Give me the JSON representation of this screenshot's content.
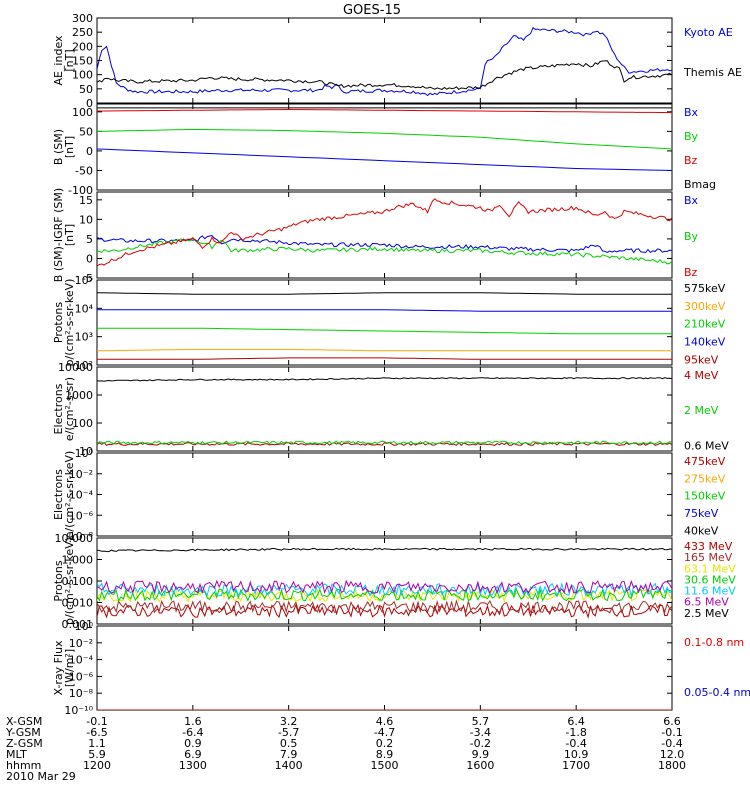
{
  "title": "GOES-15",
  "colors": {
    "black": "#000000",
    "blue": "#0000e0",
    "red": "#e00000",
    "green": "#00d000",
    "orange": "#ffa500",
    "yellow": "#e6e600",
    "cyan": "#00c8ff",
    "purple": "#b000b0",
    "brown": "#a52a2a",
    "darkred": "#b00000"
  },
  "chart_data": [
    {
      "type": "line",
      "id": "ae",
      "ylabel": [
        "AE_index",
        "[nT]"
      ],
      "ylim": [
        0,
        300
      ],
      "log": false,
      "yticks": [
        "0",
        "50",
        "100",
        "150",
        "200",
        "250",
        "300"
      ],
      "series": [
        {
          "name": "Kyoto AE",
          "color": "blue",
          "x": [
            1200,
            1205,
            1210,
            1220,
            1230,
            1240,
            1300,
            1330,
            1400,
            1430,
            1440,
            1445,
            1450,
            1455,
            1500,
            1530,
            1550,
            1600,
            1605,
            1615,
            1625,
            1635,
            1645,
            1655,
            1700,
            1710,
            1720,
            1730,
            1740,
            1750,
            1755,
            1800
          ],
          "y": [
            120,
            190,
            200,
            70,
            50,
            40,
            40,
            45,
            45,
            45,
            60,
            50,
            70,
            40,
            45,
            40,
            30,
            50,
            140,
            160,
            200,
            235,
            220,
            260,
            250,
            240,
            255,
            240,
            170,
            125,
            110,
            120
          ]
        },
        {
          "name": "Themis AE",
          "color": "black",
          "x": [
            1200,
            1210,
            1220,
            1240,
            1300,
            1320,
            1340,
            1400,
            1430,
            1440,
            1450,
            1500,
            1530,
            1550,
            1600,
            1615,
            1630,
            1645,
            1700,
            1715,
            1730,
            1745,
            1750,
            1755,
            1800
          ],
          "y": [
            70,
            90,
            80,
            75,
            80,
            90,
            85,
            80,
            75,
            70,
            60,
            65,
            60,
            50,
            55,
            85,
            105,
            120,
            140,
            130,
            150,
            120,
            80,
            90,
            100
          ]
        }
      ]
    },
    {
      "type": "line",
      "id": "bsm",
      "ylabel": [
        "B (SM)",
        "[nT]"
      ],
      "ylim": [
        -100,
        120
      ],
      "log": false,
      "yticks": [
        "-100",
        "-50",
        "0",
        "50",
        "100"
      ],
      "series": [
        {
          "name": "Bx",
          "color": "blue",
          "x": [
            1200,
            1300,
            1400,
            1500,
            1600,
            1700,
            1800
          ],
          "y": [
            5,
            -5,
            -15,
            -25,
            -35,
            -45,
            -50
          ]
        },
        {
          "name": "By",
          "color": "green",
          "x": [
            1200,
            1300,
            1400,
            1500,
            1600,
            1700,
            1800
          ],
          "y": [
            50,
            55,
            52,
            45,
            35,
            18,
            5
          ]
        },
        {
          "name": "Bz",
          "color": "red",
          "x": [
            1200,
            1300,
            1400,
            1500,
            1600,
            1700,
            1800
          ],
          "y": [
            102,
            104,
            106,
            104,
            102,
            100,
            98
          ]
        },
        {
          "name": "Bmag",
          "color": "black",
          "x": [
            1200,
            1300,
            1400,
            1500,
            1600,
            1700,
            1800
          ],
          "y": [
            110,
            110,
            110,
            110,
            110,
            110,
            110
          ]
        }
      ]
    },
    {
      "type": "line",
      "id": "bigrf",
      "ylabel": [
        "B (SM)-IGRF (SM)",
        "[nT]"
      ],
      "ylim": [
        -5,
        17
      ],
      "log": false,
      "yticks": [
        "-5",
        "0",
        "5",
        "10",
        "15"
      ],
      "series": [
        {
          "name": "Bx",
          "color": "blue",
          "x": [
            1200,
            1230,
            1300,
            1320,
            1330,
            1340,
            1400,
            1430,
            1500,
            1530,
            1600,
            1630,
            1700,
            1720,
            1730,
            1740,
            1800
          ],
          "y": [
            5,
            4.5,
            4.5,
            6,
            4,
            5,
            4,
            3.5,
            3.5,
            3,
            3,
            2.5,
            2,
            3.5,
            1.5,
            2,
            2
          ]
        },
        {
          "name": "By",
          "color": "green",
          "x": [
            1200,
            1220,
            1240,
            1300,
            1310,
            1320,
            1330,
            1340,
            1400,
            1430,
            1500,
            1530,
            1600,
            1630,
            1700,
            1730,
            1800
          ],
          "y": [
            2,
            2,
            3,
            5,
            4,
            3,
            5,
            2,
            2.5,
            2,
            2.5,
            2,
            2,
            1.5,
            1,
            0.5,
            -1
          ]
        },
        {
          "name": "Bz",
          "color": "red",
          "x": [
            1200,
            1220,
            1240,
            1300,
            1310,
            1320,
            1330,
            1340,
            1350,
            1400,
            1410,
            1430,
            1500,
            1510,
            1530,
            1545,
            1550,
            1600,
            1610,
            1620,
            1630,
            1640,
            1650,
            1700,
            1710,
            1720,
            1730,
            1740,
            1750,
            1800
          ],
          "y": [
            -2,
            0,
            2,
            5,
            3,
            5,
            4,
            7,
            5,
            8,
            9,
            10,
            12,
            13,
            14,
            12,
            15,
            13,
            12,
            14,
            11,
            14,
            12,
            13,
            12,
            11,
            12,
            10,
            12,
            10
          ]
        }
      ]
    },
    {
      "type": "line",
      "id": "protons1",
      "ylabel": [
        "Protons",
        "p/(cm²-s-sr-keV)"
      ],
      "ylim": [
        2,
        5
      ],
      "log": true,
      "yticks": [
        "10²",
        "10³",
        "10⁴",
        "10⁵"
      ],
      "series": [
        {
          "name": "575keV",
          "color": "black",
          "x": [
            1200,
            1300,
            1400,
            1500,
            1600,
            1700,
            1800
          ],
          "y": [
            4.55,
            4.5,
            4.5,
            4.55,
            4.55,
            4.5,
            4.5
          ]
        },
        {
          "name": "300keV",
          "color": "orange",
          "x": [
            1200,
            1300,
            1400,
            1500,
            1600,
            1700,
            1800
          ],
          "y": [
            2.5,
            2.55,
            2.55,
            2.5,
            2.5,
            2.5,
            2.5
          ]
        },
        {
          "name": "210keV",
          "color": "green",
          "x": [
            1200,
            1300,
            1400,
            1500,
            1600,
            1700,
            1800
          ],
          "y": [
            3.3,
            3.3,
            3.25,
            3.2,
            3.15,
            3.1,
            3.1
          ]
        },
        {
          "name": "140keV",
          "color": "blue",
          "x": [
            1200,
            1300,
            1400,
            1500,
            1600,
            1700,
            1800
          ],
          "y": [
            3.95,
            3.95,
            3.95,
            3.95,
            3.9,
            3.9,
            3.9
          ]
        },
        {
          "name": "95keV",
          "color": "darkred",
          "x": [
            1200,
            1300,
            1400,
            1500,
            1600,
            1700,
            1800
          ],
          "y": [
            2.2,
            2.2,
            2.25,
            2.25,
            2.2,
            2.2,
            2.2
          ]
        }
      ]
    },
    {
      "type": "line",
      "id": "electrons1",
      "ylabel": [
        "Electrons",
        "e/(cm²-s-sr)"
      ],
      "ylim": [
        1,
        4
      ],
      "log": true,
      "yticks": [
        "10",
        "100",
        "1000",
        "10000"
      ],
      "series": [
        {
          "name": "4 MeV",
          "color": "darkred",
          "x": [
            1200,
            1300,
            1400,
            1500,
            1600,
            1700,
            1800
          ],
          "y": [
            1.25,
            1.25,
            1.25,
            1.25,
            1.25,
            1.25,
            1.25
          ]
        },
        {
          "name": "2 MeV",
          "color": "green",
          "x": [
            1200,
            1300,
            1400,
            1500,
            1600,
            1700,
            1800
          ],
          "y": [
            1.3,
            1.3,
            1.3,
            1.3,
            1.3,
            1.3,
            1.3
          ]
        },
        {
          "name": "0.6 MeV",
          "color": "black",
          "x": [
            1200,
            1300,
            1400,
            1500,
            1600,
            1700,
            1800
          ],
          "y": [
            3.5,
            3.55,
            3.55,
            3.6,
            3.6,
            3.6,
            3.6
          ]
        }
      ]
    },
    {
      "type": "line",
      "id": "electrons2",
      "ylabel": [
        "Electrons",
        "e/(cm²-s-sr-keV)"
      ],
      "ylim": [
        -8,
        0
      ],
      "log": true,
      "yticks": [
        "10⁻⁸",
        "10⁻⁶",
        "10⁻⁴",
        "10⁻²",
        "10⁰"
      ],
      "series": [
        {
          "name": "475keV",
          "color": "darkred",
          "x": [],
          "y": []
        },
        {
          "name": "275keV",
          "color": "orange",
          "x": [],
          "y": []
        },
        {
          "name": "150keV",
          "color": "green",
          "x": [],
          "y": []
        },
        {
          "name": "75keV",
          "color": "blue",
          "x": [],
          "y": []
        },
        {
          "name": "40keV",
          "color": "black",
          "x": [],
          "y": []
        }
      ]
    },
    {
      "type": "line",
      "id": "protons2",
      "ylabel": [
        "Protons",
        "p/(cm²-s-sr-keV)"
      ],
      "ylim": [
        -3.3,
        1.7
      ],
      "log": true,
      "yticks": [
        "0.001",
        "0.010",
        "0.100",
        "1.000",
        "10.000"
      ],
      "series": [
        {
          "name": "433 MeV",
          "color": "darkred",
          "x": [
            1200,
            1300,
            1400,
            1500,
            1600,
            1700,
            1800
          ],
          "y": [
            -2.55,
            -2.55,
            -2.55,
            -2.55,
            -2.55,
            -2.55,
            -2.55
          ]
        },
        {
          "name": "165 MeV",
          "color": "brown",
          "x": [
            1200,
            1300,
            1400,
            1500,
            1600,
            1700,
            1800
          ],
          "y": [
            -2.3,
            -2.3,
            -2.3,
            -2.3,
            -2.3,
            -2.3,
            -2.3
          ]
        },
        {
          "name": "63.1 MeV",
          "color": "yellow",
          "x": [
            1200,
            1300,
            1400,
            1500,
            1600,
            1700,
            1800
          ],
          "y": [
            -1.65,
            -1.65,
            -1.65,
            -1.65,
            -1.65,
            -1.65,
            -1.65
          ]
        },
        {
          "name": "30.6 MeV",
          "color": "green",
          "x": [
            1200,
            1300,
            1400,
            1500,
            1600,
            1700,
            1800
          ],
          "y": [
            -1.6,
            -1.6,
            -1.6,
            -1.6,
            -1.6,
            -1.6,
            -1.6
          ]
        },
        {
          "name": "11.6 MeV",
          "color": "cyan",
          "x": [
            1200,
            1300,
            1400,
            1500,
            1600,
            1700,
            1800
          ],
          "y": [
            -1.3,
            -1.3,
            -1.3,
            -1.3,
            -1.3,
            -1.3,
            -1.3
          ]
        },
        {
          "name": "6.5 MeV",
          "color": "purple",
          "x": [
            1200,
            1300,
            1400,
            1500,
            1600,
            1700,
            1800
          ],
          "y": [
            -1.15,
            -1.15,
            -1.15,
            -1.15,
            -1.15,
            -1.15,
            -1.15
          ]
        },
        {
          "name": "2.5 MeV",
          "color": "black",
          "x": [
            1200,
            1300,
            1400,
            1500,
            1600,
            1700,
            1800
          ],
          "y": [
            0.95,
            1.0,
            1.05,
            1.05,
            1.05,
            1.05,
            1.05
          ]
        }
      ]
    },
    {
      "type": "line",
      "id": "xray",
      "ylabel": [
        "X-ray Flux",
        "[W/m²]"
      ],
      "ylim": [
        -10.5,
        0
      ],
      "log": true,
      "yticks": [
        "10⁻¹⁰",
        "10⁻⁸",
        "10⁻⁶",
        "10⁻⁴",
        "10⁻²",
        "10⁰"
      ],
      "series": [
        {
          "name": "0.1-0.8 nm",
          "color": "red",
          "x": [
            1200,
            1800
          ],
          "y": [
            -10.5,
            -10.5
          ]
        },
        {
          "name": "0.05-0.4 nm",
          "color": "blue",
          "x": [],
          "y": []
        }
      ]
    }
  ],
  "xaxis": {
    "ticks": [
      1200,
      1300,
      1400,
      1500,
      1600,
      1700,
      1800
    ],
    "xlim": [
      1200,
      1800
    ],
    "rows": [
      {
        "label": "X-GSM",
        "values": [
          "-0.1",
          "1.6",
          "3.2",
          "4.6",
          "5.7",
          "6.4",
          "6.6"
        ]
      },
      {
        "label": "Y-GSM",
        "values": [
          "-6.5",
          "-6.4",
          "-5.7",
          "-4.7",
          "-3.4",
          "-1.8",
          "-0.1"
        ]
      },
      {
        "label": "Z-GSM",
        "values": [
          "1.1",
          "0.9",
          "0.5",
          "0.2",
          "-0.2",
          "-0.4",
          "-0.4"
        ]
      },
      {
        "label": "MLT",
        "values": [
          "5.9",
          "6.9",
          "7.9",
          "8.9",
          "9.9",
          "10.9",
          "12.0"
        ]
      },
      {
        "label": "hhmm",
        "values": [
          "1200",
          "1300",
          "1400",
          "1500",
          "1600",
          "1700",
          "1800"
        ]
      }
    ],
    "date": "2010 Mar 29"
  }
}
